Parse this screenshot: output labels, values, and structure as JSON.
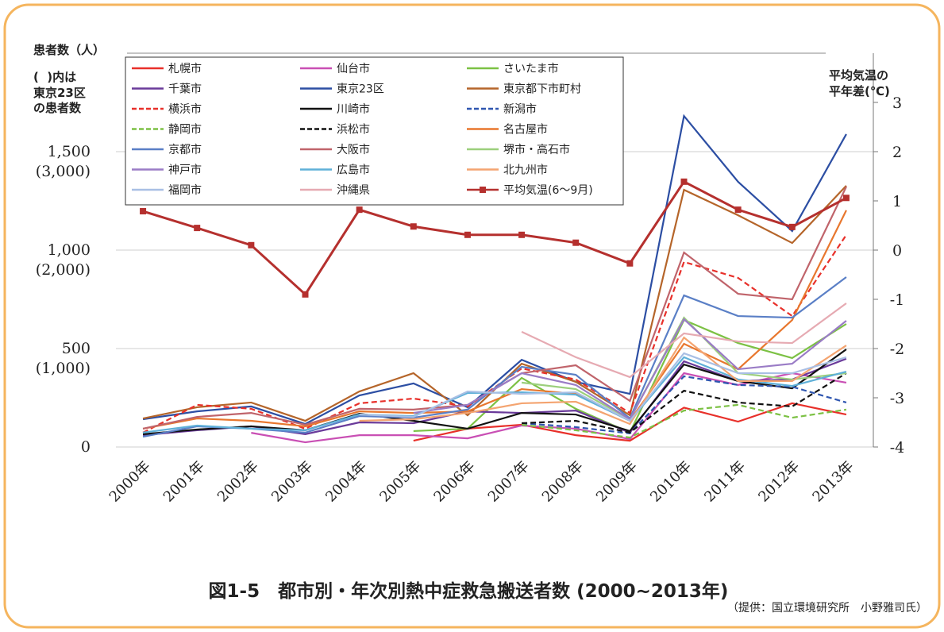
{
  "chart_data": {
    "type": "line",
    "title": "図1-5　都市別・年次別熱中症救急搬送者数 (2000~2013年)",
    "source": "（提供：国立環境研究所　小野雅司氏）",
    "ylabel": "患者数（人）",
    "ylabel_note": "(  )内は\n東京23区\nの患者数",
    "y2label": "平均気温の\n平年差(℃)",
    "categories": [
      "2000年",
      "2001年",
      "2002年",
      "2003年",
      "2004年",
      "2005年",
      "2006年",
      "2007年",
      "2008年",
      "2009年",
      "2010年",
      "2011年",
      "2012年",
      "2013年"
    ],
    "ylim": [
      0,
      2000
    ],
    "yticks": [
      0,
      {
        "value": 500,
        "label": "500\n(1,000)"
      },
      {
        "value": 1000,
        "label": "1,000\n(2,000)"
      },
      {
        "value": 1500,
        "label": "1,500\n(3,000)"
      }
    ],
    "y2lim": [
      -4,
      4
    ],
    "y2ticks": [
      -4,
      -3,
      -2,
      -1,
      0,
      1,
      2,
      3
    ],
    "grid": true,
    "legend": "top-left",
    "series": [
      {
        "name": "札幌市",
        "color": "#e8302a",
        "values": [
          null,
          null,
          null,
          null,
          null,
          32,
          93,
          113,
          60,
          32,
          200,
          129,
          222,
          165
        ]
      },
      {
        "name": "仙台市",
        "color": "#c94fb4",
        "values": [
          null,
          null,
          72,
          24,
          60,
          60,
          44,
          109,
          93,
          40,
          375,
          315,
          375,
          327
        ]
      },
      {
        "name": "さいたま市",
        "color": "#7cc144",
        "values": [
          null,
          null,
          null,
          null,
          null,
          81,
          93,
          351,
          194,
          73,
          645,
          528,
          452,
          625
        ]
      },
      {
        "name": "千葉市",
        "color": "#6a3a9a",
        "values": [
          60,
          85,
          105,
          65,
          125,
          121,
          181,
          173,
          185,
          73,
          435,
          335,
          343,
          448
        ]
      },
      {
        "name": "東京23区",
        "color": "#2c4ea3",
        "values": [
          141,
          181,
          206,
          117,
          262,
          323,
          202,
          443,
          331,
          270,
          1681,
          1347,
          1097,
          1589
        ]
      },
      {
        "name": "東京都下市町村",
        "color": "#b5652a",
        "values": [
          145,
          202,
          226,
          133,
          282,
          375,
          161,
          423,
          331,
          161,
          1306,
          1177,
          1036,
          1327
        ]
      },
      {
        "name": "横浜市",
        "color": "#e8302a",
        "linestyle": "dashed",
        "values": [
          73,
          214,
          194,
          93,
          222,
          246,
          206,
          399,
          343,
          173,
          940,
          859,
          665,
          1077
        ]
      },
      {
        "name": "川崎市",
        "color": "#111111",
        "values": [
          65,
          89,
          105,
          85,
          169,
          133,
          93,
          173,
          165,
          81,
          419,
          335,
          298,
          496
        ]
      },
      {
        "name": "新潟市",
        "color": "#2f56b0",
        "linestyle": "dashed",
        "values": [
          null,
          null,
          null,
          null,
          null,
          null,
          null,
          121,
          101,
          69,
          359,
          315,
          306,
          226
        ]
      },
      {
        "name": "静岡市",
        "color": "#7cc144",
        "linestyle": "dashed",
        "values": [
          null,
          null,
          null,
          null,
          null,
          null,
          null,
          113,
          85,
          48,
          185,
          214,
          149,
          190
        ]
      },
      {
        "name": "浜松市",
        "color": "#111111",
        "linestyle": "dashed",
        "values": [
          null,
          null,
          null,
          null,
          null,
          null,
          null,
          121,
          133,
          73,
          286,
          226,
          206,
          375
        ]
      },
      {
        "name": "名古屋市",
        "color": "#e8772e",
        "values": [
          93,
          145,
          133,
          105,
          181,
          173,
          181,
          294,
          270,
          133,
          524,
          395,
          645,
          1202
        ]
      },
      {
        "name": "京都市",
        "color": "#5a7fc6",
        "values": [
          52,
          105,
          93,
          73,
          157,
          149,
          190,
          407,
          367,
          145,
          770,
          665,
          657,
          863
        ]
      },
      {
        "name": "大阪市",
        "color": "#c0646b",
        "values": [
          93,
          153,
          173,
          113,
          194,
          190,
          214,
          375,
          415,
          234,
          988,
          778,
          750,
          1322
        ]
      },
      {
        "name": "堺市・高石市",
        "color": "#9ccf7c",
        "values": [
          null,
          null,
          null,
          null,
          null,
          null,
          null,
          327,
          294,
          141,
          657,
          375,
          343,
          375
        ]
      },
      {
        "name": "神戸市",
        "color": "#9a7cc6",
        "values": [
          null,
          null,
          null,
          null,
          null,
          173,
          214,
          375,
          315,
          141,
          649,
          395,
          423,
          641
        ]
      },
      {
        "name": "広島市",
        "color": "#5fb0d8",
        "values": [
          73,
          109,
          93,
          85,
          165,
          157,
          274,
          278,
          266,
          133,
          456,
          343,
          310,
          383
        ]
      },
      {
        "name": "北九州市",
        "color": "#f4a470",
        "values": [
          null,
          null,
          null,
          null,
          133,
          141,
          173,
          222,
          230,
          117,
          556,
          335,
          335,
          516
        ]
      },
      {
        "name": "福岡市",
        "color": "#a9bfe4",
        "values": [
          null,
          null,
          null,
          null,
          165,
          153,
          282,
          270,
          278,
          133,
          476,
          375,
          375,
          456
        ]
      },
      {
        "name": "沖縄県",
        "color": "#e6aab2",
        "values": [
          null,
          null,
          null,
          null,
          null,
          null,
          null,
          585,
          456,
          355,
          577,
          536,
          528,
          730
        ]
      },
      {
        "name": "平均気温(6～9月)",
        "color": "#b5302e",
        "axis": "y2",
        "marker": "square",
        "values": [
          0.79,
          0.45,
          0.1,
          -0.9,
          0.82,
          0.48,
          0.31,
          0.31,
          0.15,
          -0.27,
          1.39,
          0.82,
          0.47,
          1.06
        ]
      }
    ]
  }
}
